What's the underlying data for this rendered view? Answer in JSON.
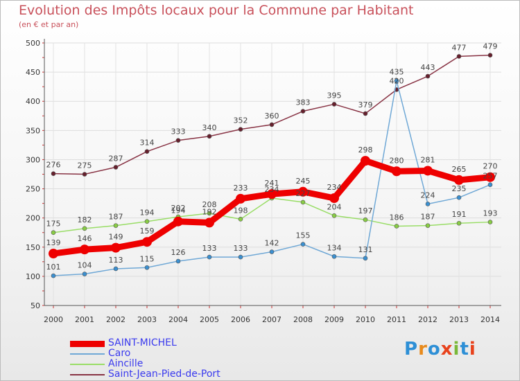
{
  "title": "Evolution des Impôts locaux pour la Commune par Habitant",
  "subtitle": "(en € et par an)",
  "logo": {
    "letters": [
      "P",
      "r",
      "o",
      "x",
      "i",
      "t",
      "i"
    ],
    "colors": [
      "#2d8fd6",
      "#e88a1c",
      "#2d8fd6",
      "#e8421c",
      "#7ab83a",
      "#2d8fd6",
      "#e8421c"
    ]
  },
  "chart_data": {
    "type": "line",
    "title": "Evolution des Impôts locaux pour la Commune par Habitant",
    "subtitle": "(en € et par an)",
    "x": [
      "2000",
      "2001",
      "2002",
      "2003",
      "2004",
      "2005",
      "2006",
      "2007",
      "2008",
      "2009",
      "2010",
      "2011",
      "2012",
      "2013",
      "2014"
    ],
    "ylim": [
      50,
      500
    ],
    "yticks": [
      "50",
      "100",
      "150",
      "200",
      "250",
      "300",
      "350",
      "400",
      "450",
      "500"
    ],
    "grid": true,
    "legend_position": "bottom-left",
    "series": [
      {
        "name": "SAINT-MICHEL",
        "color": "#ee0000",
        "markerColor": "#ee0000",
        "lineWidth": 9,
        "markerR": 7,
        "values": [
          139,
          146,
          149,
          159,
          194,
          192,
          233,
          241,
          245,
          234,
          298,
          280,
          281,
          265,
          270
        ],
        "labels": [
          "139",
          "146",
          "149",
          "159",
          "194",
          "192",
          "233",
          "241",
          "245",
          "234",
          "298",
          "280",
          "281",
          "265",
          "270"
        ]
      },
      {
        "name": "Caro",
        "color": "#6fa8d6",
        "markerColor": "#3a8fd0",
        "lineWidth": 1.5,
        "markerR": 3,
        "values": [
          101,
          104,
          113,
          115,
          126,
          133,
          133,
          142,
          155,
          134,
          131,
          435,
          224,
          235,
          257
        ],
        "labels": [
          "101",
          "104",
          "113",
          "115",
          "126",
          "133",
          "133",
          "142",
          "155",
          "134",
          "131",
          "435",
          "224",
          "235",
          "257"
        ]
      },
      {
        "name": "Aincille",
        "color": "#99dd66",
        "markerColor": "#88cc44",
        "lineWidth": 1.5,
        "markerR": 3,
        "values": [
          175,
          182,
          187,
          194,
          202,
          208,
          198,
          234,
          227,
          204,
          197,
          186,
          187,
          191,
          193
        ],
        "labels": [
          "175",
          "182",
          "187",
          "194",
          "202",
          "208",
          "198",
          "234",
          "227",
          "204",
          "197",
          "186",
          "187",
          "191",
          "193"
        ]
      },
      {
        "name": "Saint-Jean-Pied-de-Port",
        "color": "#883344",
        "markerColor": "#661f2c",
        "lineWidth": 1.5,
        "markerR": 3,
        "values": [
          276,
          275,
          287,
          314,
          333,
          340,
          352,
          360,
          383,
          395,
          379,
          420,
          443,
          477,
          479
        ],
        "labels": [
          "276",
          "275",
          "287",
          "314",
          "333",
          "340",
          "352",
          "360",
          "383",
          "395",
          "379",
          "420",
          "443",
          "477",
          "479"
        ]
      }
    ]
  }
}
